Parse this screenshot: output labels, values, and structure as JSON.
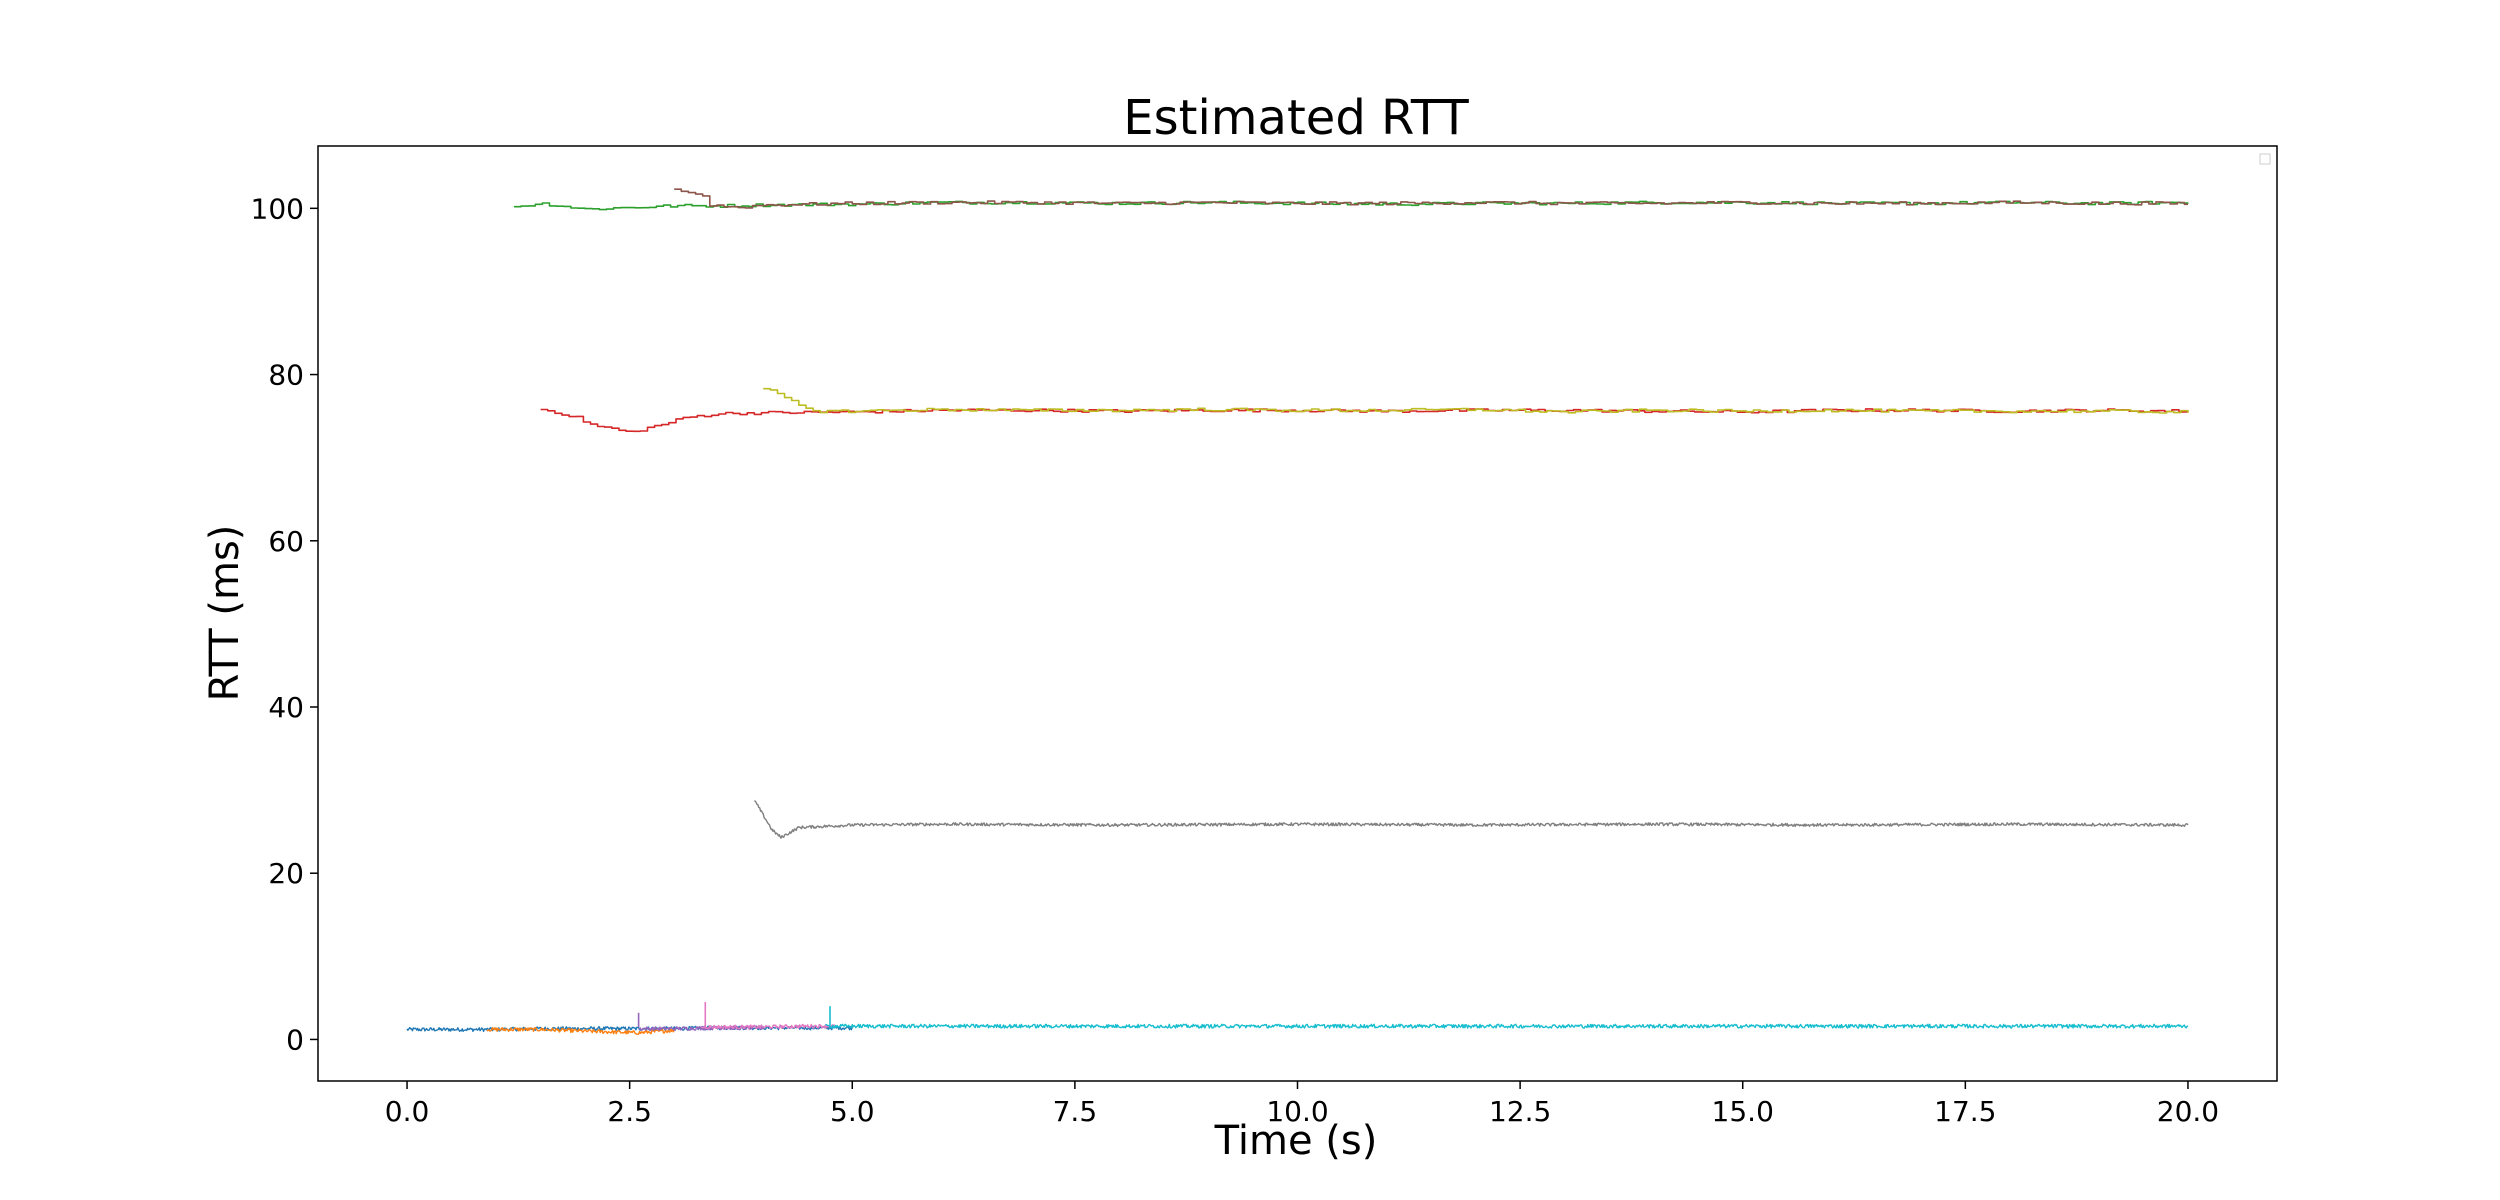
{
  "chart_data": {
    "type": "line",
    "title": "Estimated RTT",
    "xlabel": "Time (s)",
    "ylabel": "RTT (ms)",
    "xlim": [
      -1.0,
      21.0
    ],
    "ylim": [
      -5.0,
      107.5
    ],
    "x_ticks": [
      0.0,
      2.5,
      5.0,
      7.5,
      10.0,
      12.5,
      15.0,
      17.5,
      20.0
    ],
    "x_tick_labels": [
      "0.0",
      "2.5",
      "5.0",
      "7.5",
      "10.0",
      "12.5",
      "15.0",
      "17.5",
      "20.0"
    ],
    "y_ticks": [
      0,
      20,
      40,
      60,
      80,
      100
    ],
    "y_tick_labels": [
      "0",
      "20",
      "40",
      "60",
      "80",
      "100"
    ],
    "grid": false,
    "legend": {
      "position": "top-right",
      "entries": []
    },
    "series": [
      {
        "color": "#1f77b4",
        "line_style": "noisy",
        "x": [
          0.0,
          0.5,
          1.0,
          1.5,
          2.0,
          2.5,
          3.0,
          3.5,
          4.0,
          4.5,
          5.0
        ],
        "y": [
          1.2,
          1.2,
          1.2,
          1.3,
          1.3,
          1.3,
          1.3,
          1.4,
          1.4,
          1.4,
          1.4
        ]
      },
      {
        "color": "#ff7f0e",
        "line_style": "noisy",
        "x": [
          0.9,
          1.5,
          2.0,
          2.3,
          2.6,
          3.0
        ],
        "y": [
          1.2,
          1.2,
          1.0,
          0.9,
          0.8,
          1.1
        ]
      },
      {
        "color": "#2ca02c",
        "line_style": "step",
        "x": [
          1.2,
          1.5,
          2.0,
          2.5,
          3.0,
          3.5,
          4.0,
          5.0,
          6.0,
          7.0,
          8.0,
          9.0,
          10.0,
          11.0,
          12.0,
          13.0,
          14.0,
          15.0,
          16.0,
          17.0,
          18.0,
          19.0,
          20.0
        ],
        "y": [
          100.2,
          100.6,
          99.9,
          100.1,
          100.3,
          100.3,
          100.4,
          100.5,
          100.7,
          100.7,
          100.6,
          100.7,
          100.6,
          100.5,
          100.6,
          100.6,
          100.7,
          100.7,
          100.6,
          100.6,
          100.7,
          100.6,
          100.7
        ]
      },
      {
        "color": "#d62728",
        "line_style": "step",
        "x": [
          1.5,
          1.7,
          1.9,
          2.1,
          2.3,
          2.5,
          2.7,
          2.9,
          3.1,
          3.5,
          4.0,
          5.0,
          6.0,
          7.0,
          8.0,
          9.0,
          10.0,
          11.0,
          12.0,
          13.0,
          14.0,
          15.0,
          16.0,
          17.0,
          18.0,
          19.0,
          20.0
        ],
        "y": [
          75.8,
          75.4,
          74.8,
          73.8,
          73.5,
          73.0,
          73.6,
          74.1,
          74.8,
          75.3,
          75.4,
          75.5,
          75.7,
          75.7,
          75.6,
          75.7,
          75.7,
          75.6,
          75.7,
          75.7,
          75.6,
          75.5,
          75.7,
          75.7,
          75.6,
          75.7,
          75.6
        ]
      },
      {
        "color": "#9467bd",
        "line_style": "noisy",
        "x": [
          2.6,
          3.0,
          3.5,
          4.0
        ],
        "y": [
          1.3,
          1.3,
          1.4,
          1.4
        ]
      },
      {
        "color": "#8c564b",
        "line_style": "step",
        "x": [
          3.0,
          3.1,
          3.3,
          3.4,
          3.7,
          4.0,
          5.0,
          6.0,
          7.0,
          8.0,
          9.0,
          10.0,
          11.0,
          12.0,
          13.0,
          14.0,
          15.0,
          16.0,
          17.0,
          18.0,
          19.0,
          20.0
        ],
        "y": [
          102.3,
          102.0,
          101.7,
          100.4,
          100.1,
          100.4,
          100.6,
          100.7,
          100.7,
          100.6,
          100.7,
          100.6,
          100.6,
          100.7,
          100.6,
          100.6,
          100.7,
          100.6,
          100.6,
          100.7,
          100.6,
          100.6
        ]
      },
      {
        "color": "#e377c2",
        "line_style": "noisy",
        "x": [
          3.3,
          3.5,
          4.0,
          4.5,
          4.8
        ],
        "y": [
          1.5,
          1.5,
          1.5,
          1.6,
          1.6
        ]
      },
      {
        "color": "#7f7f7f",
        "line_style": "noisy",
        "x": [
          3.9,
          4.0,
          4.1,
          4.2,
          4.4,
          5.0,
          6.0,
          8.0,
          10.0,
          12.0,
          14.0,
          16.0,
          18.0,
          20.0
        ],
        "y": [
          28.8,
          27.0,
          25.2,
          24.3,
          25.5,
          25.8,
          25.9,
          25.8,
          25.9,
          25.8,
          25.9,
          25.8,
          25.9,
          25.8
        ]
      },
      {
        "color": "#bcbd22",
        "line_style": "step",
        "x": [
          4.0,
          4.2,
          4.4,
          4.6,
          5.0,
          6.0,
          7.0,
          8.0,
          9.0,
          10.0,
          11.0,
          12.0,
          13.0,
          14.0,
          15.0,
          16.0,
          17.0,
          18.0,
          19.0,
          20.0
        ],
        "y": [
          78.3,
          77.5,
          76.2,
          75.6,
          75.6,
          75.8,
          75.7,
          75.7,
          75.8,
          75.7,
          75.7,
          75.8,
          75.5,
          75.7,
          75.6,
          75.7,
          75.6,
          75.6,
          75.6,
          75.5
        ]
      },
      {
        "color": "#17becf",
        "line_style": "noisy",
        "x": [
          4.7,
          5.0,
          7.5,
          10.0,
          12.5,
          15.0,
          17.5,
          20.0
        ],
        "y": [
          1.6,
          1.6,
          1.6,
          1.6,
          1.6,
          1.6,
          1.6,
          1.6
        ]
      }
    ],
    "spikes": [
      {
        "color": "#9467bd",
        "x": 2.6,
        "y": 3.2
      },
      {
        "color": "#e377c2",
        "x": 3.35,
        "y": 4.5
      },
      {
        "color": "#17becf",
        "x": 4.75,
        "y": 4.0
      }
    ]
  }
}
